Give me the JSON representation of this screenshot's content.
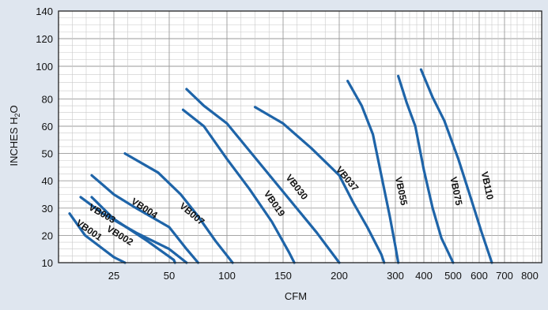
{
  "chart_data": {
    "type": "line",
    "xlabel": "CFM",
    "ylabel_main": "INCHES H",
    "ylabel_sub": "2",
    "ylabel_tail": "O",
    "y_ticks": [
      "140",
      "120",
      "100",
      "80",
      "60",
      "50",
      "40",
      "30",
      "20",
      "10"
    ],
    "x_tick_labels": [
      "25",
      "50",
      "100",
      "150",
      "200",
      "300",
      "400",
      "500",
      "600",
      "700",
      "800"
    ],
    "grid": true,
    "line_color": "#1e64a8",
    "series": [
      {
        "name": "VB001",
        "points": [
          [
            5,
            28
          ],
          [
            12,
            20
          ],
          [
            25,
            12
          ],
          [
            30,
            10
          ]
        ]
      },
      {
        "name": "VB002",
        "points": [
          [
            15,
            34
          ],
          [
            25,
            26
          ],
          [
            40,
            18
          ],
          [
            54,
            11
          ],
          [
            55,
            10
          ]
        ]
      },
      {
        "name": "VB003",
        "points": [
          [
            10,
            34
          ],
          [
            20,
            28
          ],
          [
            35,
            21
          ],
          [
            50,
            15
          ],
          [
            65,
            10
          ]
        ]
      },
      {
        "name": "VB004",
        "points": [
          [
            15,
            42
          ],
          [
            25,
            35
          ],
          [
            35,
            30
          ],
          [
            50,
            23
          ],
          [
            65,
            15
          ],
          [
            75,
            10
          ]
        ]
      },
      {
        "name": "VB007",
        "points": [
          [
            30,
            50
          ],
          [
            45,
            43
          ],
          [
            60,
            35
          ],
          [
            75,
            27
          ],
          [
            90,
            18
          ],
          [
            105,
            10
          ]
        ]
      },
      {
        "name": "VB019",
        "points": [
          [
            62,
            72
          ],
          [
            80,
            60
          ],
          [
            100,
            48
          ],
          [
            120,
            37
          ],
          [
            140,
            25
          ],
          [
            155,
            14
          ],
          [
            160,
            10
          ]
        ]
      },
      {
        "name": "VB030",
        "points": [
          [
            65,
            86
          ],
          [
            80,
            75
          ],
          [
            100,
            62
          ],
          [
            120,
            51
          ],
          [
            140,
            41
          ],
          [
            160,
            31
          ],
          [
            180,
            21
          ],
          [
            200,
            10
          ]
        ]
      },
      {
        "name": "VB037",
        "points": [
          [
            125,
            74
          ],
          [
            150,
            62
          ],
          [
            175,
            52
          ],
          [
            200,
            42
          ],
          [
            225,
            32
          ],
          [
            250,
            23
          ],
          [
            275,
            13
          ],
          [
            280,
            10
          ]
        ]
      },
      {
        "name": "VB055",
        "points": [
          [
            215,
            91
          ],
          [
            240,
            75
          ],
          [
            260,
            57
          ],
          [
            275,
            42
          ],
          [
            290,
            27
          ],
          [
            300,
            16
          ],
          [
            310,
            10
          ]
        ]
      },
      {
        "name": "VB075",
        "points": [
          [
            310,
            94
          ],
          [
            340,
            77
          ],
          [
            370,
            60
          ],
          [
            400,
            44
          ],
          [
            430,
            30
          ],
          [
            460,
            19
          ],
          [
            500,
            10
          ]
        ]
      },
      {
        "name": "VB110",
        "points": [
          [
            390,
            98
          ],
          [
            430,
            81
          ],
          [
            470,
            64
          ],
          [
            520,
            48
          ],
          [
            570,
            33
          ],
          [
            610,
            21
          ],
          [
            650,
            10
          ]
        ]
      }
    ]
  }
}
